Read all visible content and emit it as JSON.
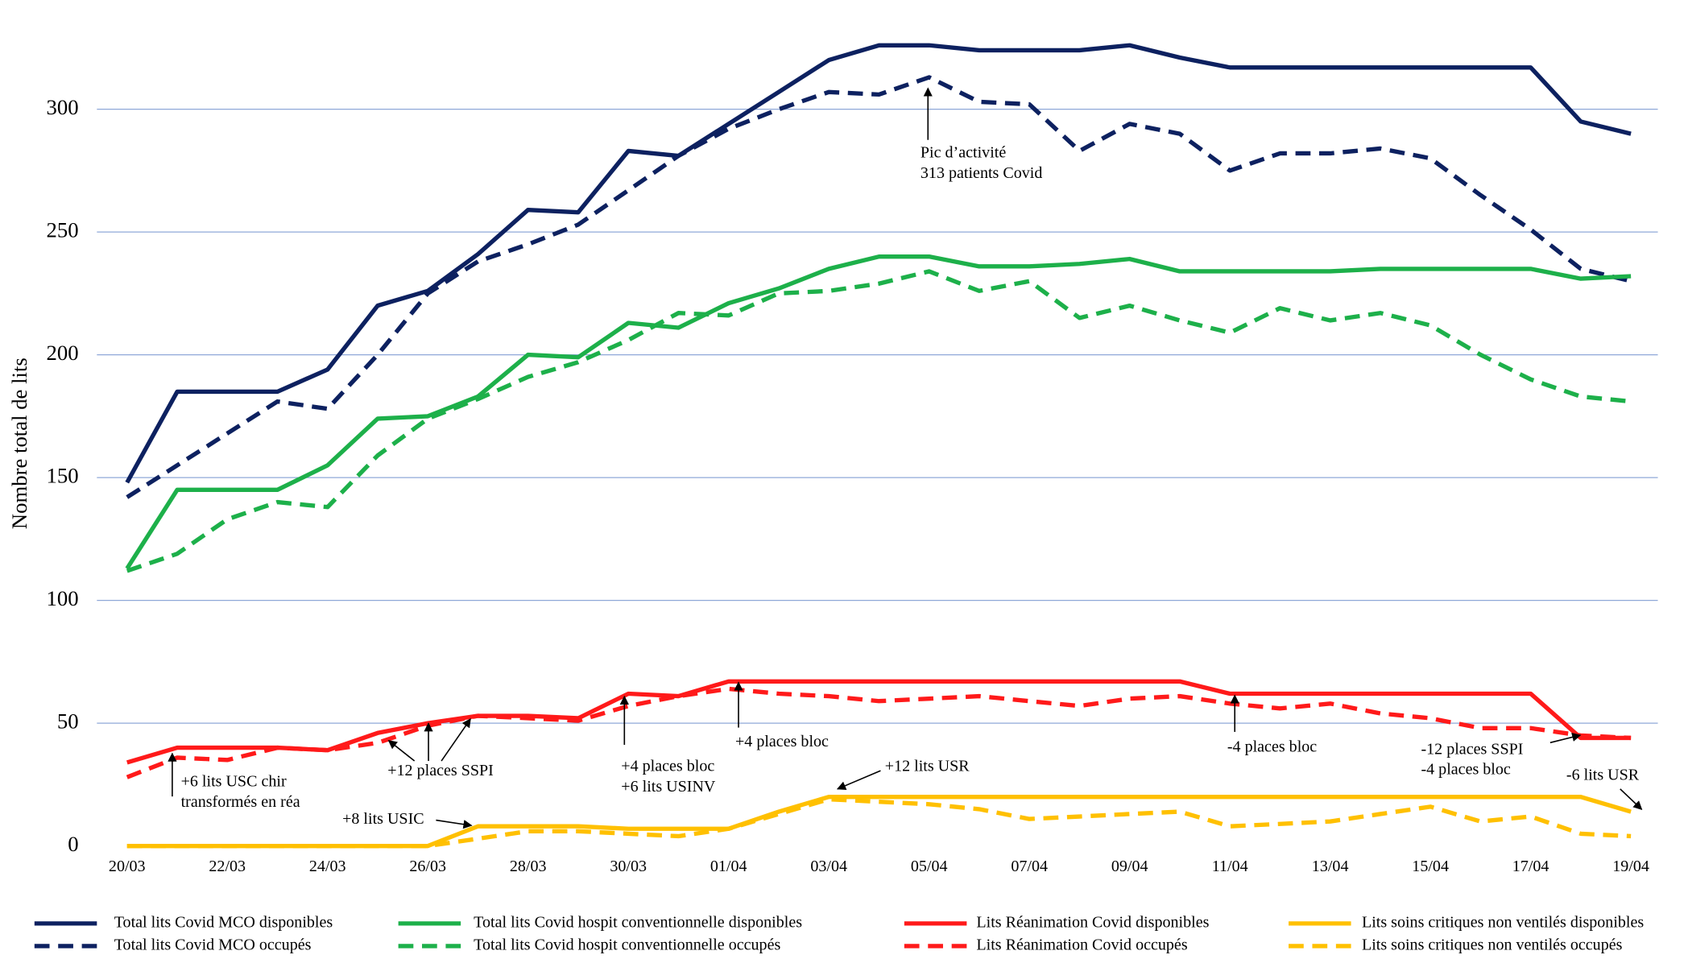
{
  "chart_data": {
    "type": "line",
    "y_label": "Nombre total de lits",
    "categories": [
      "20/03",
      null,
      "22/03",
      null,
      "24/03",
      null,
      "26/03",
      null,
      "28/03",
      null,
      "30/03",
      null,
      "01/04",
      null,
      "03/04",
      null,
      "05/04",
      null,
      "07/04",
      null,
      "09/04",
      null,
      "11/04",
      null,
      "13/04",
      null,
      "15/04",
      null,
      "17/04",
      null,
      "19/04"
    ],
    "ylim": [
      0,
      330
    ],
    "yticks": [
      0,
      50,
      100,
      150,
      200,
      250,
      300
    ],
    "grid": true,
    "series": [
      {
        "name": "Total lits Covid MCO disponibles",
        "color": "#0d2160",
        "dashed": false,
        "values": [
          148,
          185,
          185,
          185,
          194,
          220,
          226,
          241,
          259,
          258,
          283,
          281,
          294,
          307,
          320,
          326,
          326,
          324,
          324,
          324,
          326,
          321,
          317,
          317,
          317,
          317,
          317,
          317,
          317,
          295,
          290
        ]
      },
      {
        "name": "Total lits Covid MCO occupés",
        "color": "#0d2160",
        "dashed": true,
        "values": [
          142,
          155,
          168,
          181,
          178,
          200,
          225,
          238,
          245,
          253,
          267,
          281,
          292,
          300,
          307,
          306,
          313,
          303,
          302,
          283,
          294,
          290,
          275,
          282,
          282,
          284,
          280,
          265,
          251,
          235,
          230
        ]
      },
      {
        "name": "Total lits Covid hospit conventionnelle disponibles",
        "color": "#1db04a",
        "dashed": false,
        "values": [
          113,
          145,
          145,
          145,
          155,
          174,
          175,
          183,
          200,
          199,
          213,
          211,
          221,
          227,
          235,
          240,
          240,
          236,
          236,
          237,
          239,
          234,
          234,
          234,
          234,
          235,
          235,
          235,
          235,
          231,
          232
        ]
      },
      {
        "name": "Total lits Covid hospit conventionnelle occupés",
        "color": "#1db04a",
        "dashed": true,
        "values": [
          112,
          119,
          133,
          140,
          138,
          159,
          174,
          182,
          191,
          197,
          206,
          217,
          216,
          225,
          226,
          229,
          234,
          226,
          230,
          215,
          220,
          214,
          209,
          219,
          214,
          217,
          212,
          200,
          190,
          183,
          181
        ]
      },
      {
        "name": "Lits Réanimation Covid disponibles",
        "color": "#ff1a1a",
        "dashed": false,
        "values": [
          34,
          40,
          40,
          40,
          39,
          46,
          50,
          53,
          53,
          52,
          62,
          61,
          67,
          67,
          67,
          67,
          67,
          67,
          67,
          67,
          67,
          67,
          62,
          62,
          62,
          62,
          62,
          62,
          62,
          44,
          44
        ]
      },
      {
        "name": "Lits Réanimation Covid occupés",
        "color": "#ff1a1a",
        "dashed": true,
        "values": [
          28,
          36,
          35,
          40,
          39,
          42,
          49,
          53,
          52,
          51,
          57,
          61,
          64,
          62,
          61,
          59,
          60,
          61,
          59,
          57,
          60,
          61,
          58,
          56,
          58,
          54,
          52,
          48,
          48,
          45,
          44
        ]
      },
      {
        "name": "Lits soins critiques non ventilés disponibles",
        "color": "#ffc000",
        "dashed": false,
        "values": [
          0,
          0,
          0,
          0,
          0,
          0,
          0,
          8,
          8,
          8,
          7,
          7,
          7,
          14,
          20,
          20,
          20,
          20,
          20,
          20,
          20,
          20,
          20,
          20,
          20,
          20,
          20,
          20,
          20,
          20,
          14
        ]
      },
      {
        "name": "Lits soins critiques non ventilés occupés",
        "color": "#ffc000",
        "dashed": true,
        "values": [
          0,
          0,
          0,
          0,
          0,
          0,
          0,
          3,
          6,
          6,
          5,
          4,
          7,
          13,
          19,
          18,
          17,
          15,
          11,
          12,
          13,
          14,
          8,
          9,
          10,
          13,
          16,
          10,
          12,
          5,
          4
        ]
      }
    ],
    "annotations": [
      [
        "Pic d’activité",
        "313 patients Covid"
      ],
      [
        "+6 lits USC chir",
        "transformés en réa"
      ],
      [
        "+12 places SSPI"
      ],
      [
        "+8 lits USIC"
      ],
      [
        "+4 places bloc",
        "+6 lits USINV"
      ],
      [
        "+4 places bloc"
      ],
      [
        "+12 lits USR"
      ],
      [
        "-4 places bloc"
      ],
      [
        "-12 places SSPI",
        "-4 places bloc"
      ],
      [
        "-6 lits USR"
      ]
    ]
  }
}
